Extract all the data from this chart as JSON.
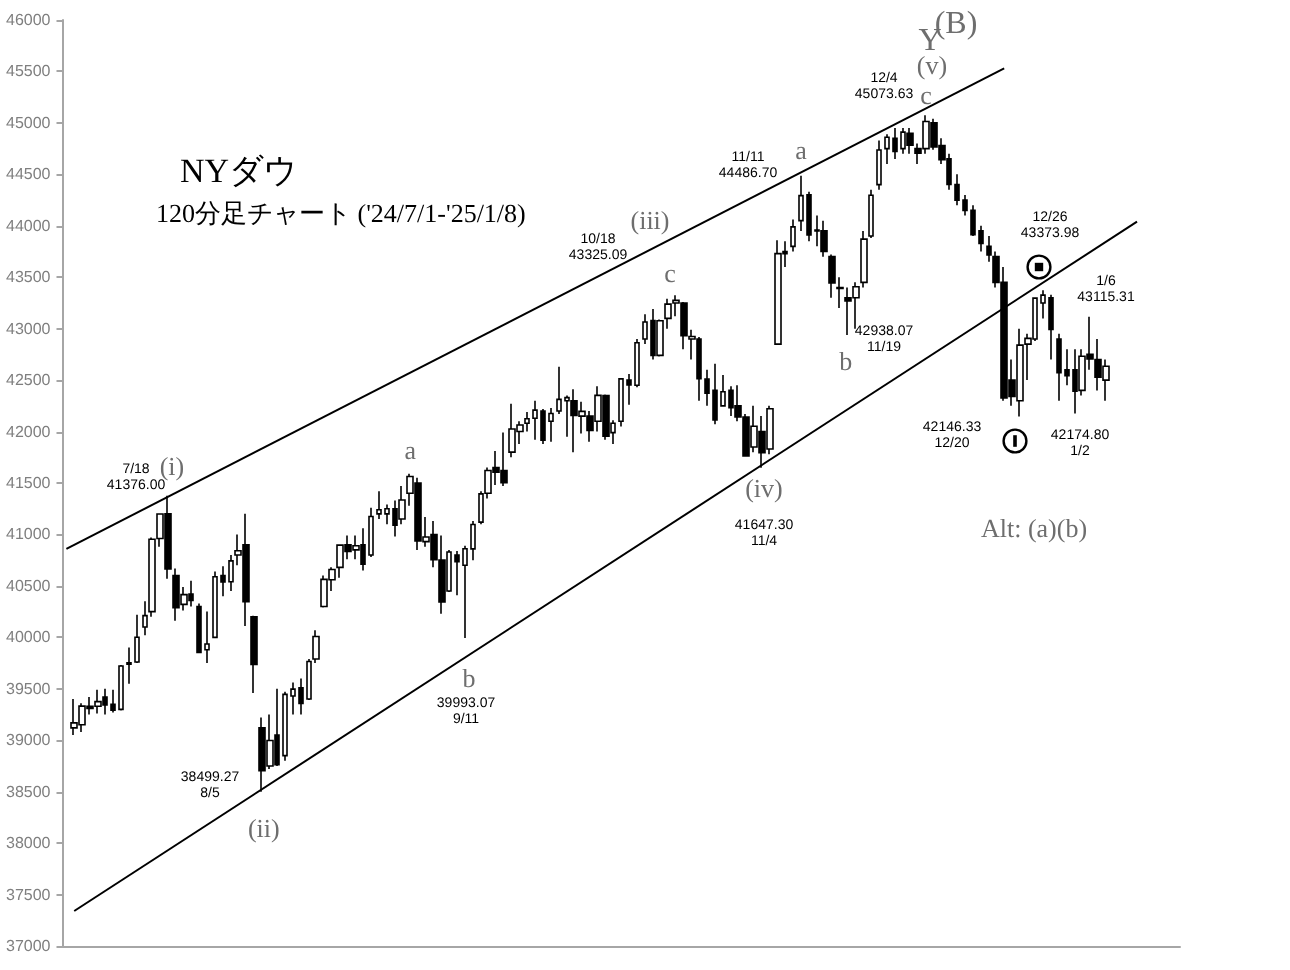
{
  "chart_data": {
    "type": "candlestick",
    "title": "NYダウ",
    "subtitle": "120分足チャート ('24/7/1-'25/1/8)",
    "categories": [
      null,
      null,
      null,
      null,
      null,
      null,
      null,
      null,
      null,
      null,
      null,
      null,
      null,
      null,
      null,
      null,
      null,
      null,
      null,
      null,
      null,
      null,
      null,
      null,
      null,
      null,
      null,
      null,
      null,
      null,
      null,
      null,
      null,
      null,
      null,
      null,
      null,
      null,
      null,
      null,
      null,
      null,
      null,
      null,
      null,
      null,
      null,
      null,
      null,
      null,
      null,
      null,
      null,
      null,
      null,
      null,
      null,
      null,
      null,
      null,
      null,
      null,
      null,
      null,
      null,
      null,
      null,
      null,
      null,
      null,
      null,
      null,
      null,
      null,
      null,
      null,
      null,
      null,
      null,
      null,
      null,
      null,
      null,
      null,
      null,
      null,
      null,
      null,
      null,
      null,
      null,
      null,
      null,
      null,
      null,
      null,
      null,
      null,
      null,
      null,
      null,
      null,
      null,
      null,
      null,
      null,
      null,
      null,
      null,
      null,
      null,
      null,
      null,
      null,
      null,
      null,
      null,
      null,
      null,
      null,
      null,
      null,
      null,
      null,
      null,
      null,
      null,
      null,
      null,
      null,
      null,
      null,
      null,
      null,
      null,
      null,
      null,
      null,
      null,
      null,
      null,
      null,
      null
    ],
    "color": "#000000",
    "ohlc": [
      null,
      [
        39120,
        39400,
        39050,
        39169
      ],
      [
        39150,
        39360,
        39080,
        39331
      ],
      [
        39330,
        39420,
        39250,
        39308
      ],
      [
        39330,
        39490,
        39260,
        39375
      ],
      [
        39420,
        39500,
        39250,
        39344
      ],
      [
        39350,
        39490,
        39270,
        39291
      ],
      [
        39300,
        39730,
        39290,
        39721
      ],
      [
        39740,
        39900,
        39550,
        39753
      ],
      [
        39760,
        40220,
        39750,
        40001
      ],
      [
        40100,
        40350,
        40020,
        40211
      ],
      [
        40250,
        40970,
        40200,
        40954
      ],
      [
        40960,
        41200,
        40880,
        41198
      ],
      [
        41200,
        41376,
        40570,
        40665
      ],
      [
        40600,
        40670,
        40160,
        40287
      ],
      [
        40320,
        40490,
        40260,
        40415
      ],
      [
        40420,
        40550,
        40300,
        40358
      ],
      [
        40300,
        40330,
        39850,
        39854
      ],
      [
        39880,
        40250,
        39750,
        39935
      ],
      [
        40000,
        40640,
        39990,
        40589
      ],
      [
        40600,
        40690,
        40400,
        40539
      ],
      [
        40540,
        40800,
        40450,
        40743
      ],
      [
        40800,
        41000,
        40700,
        40842
      ],
      [
        40900,
        41200,
        40110,
        40347
      ],
      [
        40200,
        40210,
        39460,
        39737
      ],
      [
        39120,
        39220,
        38499.27,
        38703
      ],
      [
        38750,
        39250,
        38720,
        38997
      ],
      [
        39050,
        39500,
        38750,
        38763
      ],
      [
        38850,
        39470,
        38800,
        39446
      ],
      [
        39430,
        39560,
        39250,
        39497
      ],
      [
        39510,
        39600,
        39250,
        39357
      ],
      [
        39400,
        39790,
        39390,
        39765
      ],
      [
        39790,
        40070,
        39750,
        40008
      ],
      [
        40300,
        40600,
        40290,
        40563
      ],
      [
        40560,
        40680,
        40450,
        40659
      ],
      [
        40680,
        40900,
        40580,
        40896
      ],
      [
        40900,
        40990,
        40760,
        40834
      ],
      [
        40850,
        40990,
        40760,
        40890
      ],
      [
        40900,
        41060,
        40650,
        40712
      ],
      [
        40800,
        41260,
        40780,
        41175
      ],
      [
        41200,
        41420,
        41150,
        41240
      ],
      [
        41200,
        41290,
        41100,
        41250
      ],
      [
        41250,
        41330,
        40980,
        41091
      ],
      [
        41150,
        41470,
        41100,
        41335
      ],
      [
        41400,
        41590,
        41280,
        41563
      ],
      [
        41500,
        41550,
        40850,
        40937
      ],
      [
        40930,
        41170,
        40880,
        40975
      ],
      [
        41000,
        41130,
        40680,
        40755
      ],
      [
        40750,
        40990,
        40230,
        40345
      ],
      [
        40450,
        40850,
        40440,
        40830
      ],
      [
        40800,
        40840,
        40410,
        40736
      ],
      [
        40700,
        40890,
        39993.07,
        40861
      ],
      [
        40860,
        41130,
        40750,
        41097
      ],
      [
        41120,
        41420,
        41100,
        41394
      ],
      [
        41400,
        41650,
        41350,
        41622
      ],
      [
        41650,
        41810,
        41480,
        41606
      ],
      [
        41620,
        41990,
        41470,
        41504
      ],
      [
        41800,
        42270,
        41750,
        42025
      ],
      [
        42000,
        42100,
        41880,
        42063
      ],
      [
        42080,
        42190,
        42000,
        42124
      ],
      [
        42130,
        42300,
        41920,
        42208
      ],
      [
        42200,
        42220,
        41880,
        41915
      ],
      [
        42100,
        42230,
        41900,
        42175
      ],
      [
        42200,
        42630,
        42170,
        42313
      ],
      [
        42300,
        42350,
        41950,
        42330
      ],
      [
        42300,
        42410,
        41800,
        42156
      ],
      [
        42150,
        42290,
        41980,
        42196
      ],
      [
        42150,
        42200,
        41900,
        42011
      ],
      [
        42100,
        42440,
        42000,
        42352
      ],
      [
        42350,
        42360,
        41920,
        41954
      ],
      [
        41990,
        42110,
        41880,
        42080
      ],
      [
        42100,
        42520,
        42050,
        42512
      ],
      [
        42500,
        42560,
        42260,
        42454
      ],
      [
        42450,
        42900,
        42430,
        42863
      ],
      [
        42900,
        43140,
        42850,
        43065
      ],
      [
        43080,
        43190,
        42700,
        42740
      ],
      [
        42740,
        43090,
        42730,
        43077
      ],
      [
        43100,
        43290,
        43000,
        43239
      ],
      [
        43250,
        43325.09,
        43120,
        43275
      ],
      [
        43250,
        43260,
        42800,
        42931
      ],
      [
        42900,
        42990,
        42700,
        42924
      ],
      [
        42900,
        42920,
        42300,
        42514
      ],
      [
        42510,
        42600,
        42250,
        42374
      ],
      [
        42400,
        42660,
        42070,
        42114
      ],
      [
        42250,
        42550,
        42240,
        42387
      ],
      [
        42400,
        42440,
        42150,
        42233
      ],
      [
        42250,
        42450,
        42100,
        42141
      ],
      [
        42140,
        42170,
        41760,
        41763
      ],
      [
        41850,
        42250,
        41800,
        42052
      ],
      [
        42000,
        42150,
        41647.3,
        41794
      ],
      [
        41830,
        42250,
        41780,
        42222
      ],
      [
        42850,
        43860,
        42850,
        43729
      ],
      [
        43750,
        43850,
        43600,
        43729
      ],
      [
        43800,
        44060,
        43750,
        43989
      ],
      [
        44050,
        44486.7,
        43950,
        44293
      ],
      [
        44300,
        44330,
        43850,
        43911
      ],
      [
        43950,
        44100,
        43800,
        43958
      ],
      [
        43950,
        44050,
        43700,
        43750
      ],
      [
        43700,
        43720,
        43300,
        43445
      ],
      [
        43400,
        43500,
        43200,
        43390
      ],
      [
        43300,
        43400,
        42938.07,
        43269
      ],
      [
        43300,
        43450,
        43000,
        43408
      ],
      [
        43450,
        43950,
        43400,
        43870
      ],
      [
        43900,
        44350,
        43880,
        44296
      ],
      [
        44400,
        44830,
        44350,
        44736
      ],
      [
        44750,
        44890,
        44600,
        44860
      ],
      [
        44850,
        44950,
        44650,
        44722
      ],
      [
        44750,
        44950,
        44700,
        44910
      ],
      [
        44900,
        44950,
        44700,
        44782
      ],
      [
        44750,
        44800,
        44600,
        44705
      ],
      [
        44750,
        45073.63,
        44700,
        45014
      ],
      [
        45000,
        45040,
        44740,
        44766
      ],
      [
        44780,
        44850,
        44600,
        44643
      ],
      [
        44650,
        44700,
        44350,
        44401
      ],
      [
        44400,
        44500,
        44200,
        44248
      ],
      [
        44250,
        44300,
        44100,
        44149
      ],
      [
        44150,
        44200,
        43900,
        43914
      ],
      [
        43950,
        44000,
        43750,
        43828
      ],
      [
        43800,
        43900,
        43650,
        43717
      ],
      [
        43700,
        43750,
        43400,
        43449
      ],
      [
        43450,
        43600,
        42300,
        42327
      ],
      [
        42500,
        42700,
        42250,
        42342
      ],
      [
        42300,
        43000,
        42146.33,
        42840
      ],
      [
        42850,
        42950,
        42500,
        42906
      ],
      [
        42900,
        43300,
        42880,
        43297
      ],
      [
        43250,
        43373.98,
        43100,
        43326
      ],
      [
        43300,
        43330,
        42700,
        42992
      ],
      [
        42900,
        42950,
        42300,
        42573
      ],
      [
        42600,
        42800,
        42450,
        42544
      ],
      [
        42600,
        42800,
        42174.8,
        42392
      ],
      [
        42400,
        42800,
        42350,
        42732
      ],
      [
        42750,
        43115.31,
        42600,
        42706
      ],
      [
        42700,
        42900,
        42400,
        42528
      ],
      [
        42500,
        42700,
        42300,
        42635
      ],
      null,
      null,
      null,
      null,
      null,
      null,
      null,
      null,
      null
    ],
    "series": [
      {
        "type": "line",
        "color": "#000000",
        "values": [
          40860,
          null,
          null,
          null,
          null,
          null,
          null,
          null,
          null,
          null,
          null,
          null,
          null,
          null,
          null,
          null,
          null,
          null,
          null,
          null,
          null,
          null,
          null,
          null,
          null,
          null,
          null,
          null,
          null,
          null,
          null,
          null,
          null,
          null,
          null,
          null,
          null,
          null,
          null,
          null,
          null,
          null,
          null,
          null,
          null,
          null,
          null,
          null,
          null,
          null,
          null,
          null,
          null,
          null,
          null,
          null,
          null,
          null,
          null,
          null,
          null,
          null,
          null,
          null,
          null,
          null,
          null,
          null,
          null,
          null,
          null,
          null,
          null,
          null,
          null,
          null,
          null,
          null,
          null,
          null,
          null,
          null,
          null,
          null,
          null,
          null,
          null,
          null,
          null,
          null,
          null,
          null,
          null,
          null,
          null,
          null,
          null,
          null,
          null,
          null,
          null,
          null,
          null,
          null,
          null,
          null,
          null,
          null,
          null,
          null,
          null,
          null,
          null,
          null,
          null,
          null,
          null,
          null,
          null,
          null,
          45530,
          null,
          null,
          null,
          null,
          null,
          null,
          null,
          null,
          null,
          null,
          null,
          null,
          null,
          null,
          null,
          null,
          null,
          null,
          null,
          null,
          null,
          null
        ]
      },
      {
        "type": "line",
        "color": "#000000",
        "values": [
          null,
          37340,
          null,
          null,
          null,
          null,
          null,
          null,
          null,
          null,
          null,
          null,
          null,
          null,
          null,
          null,
          null,
          null,
          null,
          null,
          null,
          null,
          null,
          null,
          null,
          null,
          null,
          null,
          null,
          null,
          null,
          null,
          null,
          null,
          null,
          null,
          null,
          null,
          null,
          null,
          null,
          null,
          null,
          null,
          null,
          null,
          null,
          null,
          null,
          null,
          null,
          null,
          null,
          null,
          null,
          null,
          null,
          null,
          null,
          null,
          null,
          null,
          null,
          null,
          null,
          null,
          null,
          null,
          null,
          null,
          null,
          null,
          null,
          null,
          null,
          null,
          null,
          null,
          null,
          null,
          null,
          null,
          null,
          null,
          null,
          null,
          null,
          null,
          null,
          null,
          null,
          null,
          null,
          null,
          null,
          null,
          null,
          null,
          null,
          null,
          null,
          null,
          null,
          null,
          null,
          null,
          null,
          null,
          null,
          null,
          null,
          null,
          null,
          null,
          null,
          null,
          null,
          null,
          null,
          null,
          null,
          null,
          null,
          null,
          null,
          null,
          null,
          null,
          null,
          null,
          null,
          null,
          null,
          null,
          null,
          null,
          null,
          44040,
          null,
          null,
          null,
          null,
          null
        ]
      }
    ],
    "ylim": [
      37000,
      46000
    ],
    "yticks": [
      37000,
      37500,
      38000,
      38500,
      39000,
      39500,
      40000,
      40500,
      41000,
      41500,
      42000,
      42500,
      43000,
      43500,
      44000,
      44500,
      45000,
      45500,
      46000
    ],
    "grid": false,
    "tick_labels": "y",
    "annotations": [
      "7/18\n41376.00",
      {
        "text": "(i)",
        "y": 41376
      },
      "38499.27\n8/5",
      {
        "text": "(ii)",
        "y": 38499.27
      },
      {
        "text": "a",
        "y": 41590
      },
      {
        "text": "b",
        "y": 39993.07
      },
      "39993.07\n9/11",
      "10/18\n43325.09",
      "(iii)",
      {
        "text": "c",
        "y": 43325.09
      },
      {
        "text": "(iv)",
        "y": 41647.3
      },
      "41647.30\n11/4",
      "11/11\n44486.70",
      {
        "text": "a",
        "y": 44486.7
      },
      {
        "text": "b",
        "y": 42938.07
      },
      "42938.07\n11/19",
      "12/4\n45073.63",
      {
        "text": "c",
        "y": 45073.63
      },
      {
        "text": "(v)",
        "y": 45073.63
      },
      {
        "text": "Y",
        "y": 45073.63
      },
      "(B)",
      "42146.33\n12/20",
      "12/26\n43373.98",
      "1/6\n43115.31",
      "42174.80\n1/2",
      "Alt: (a)(b)"
    ]
  }
}
